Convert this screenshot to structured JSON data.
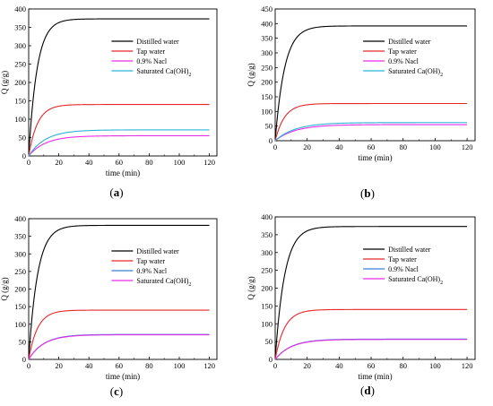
{
  "chart_data": [
    {
      "type": "line",
      "panel_label": "a",
      "xlabel": "time (min)",
      "ylabel": "Q (g/g)",
      "xlim": [
        0,
        125
      ],
      "ylim": [
        0,
        400
      ],
      "xticks": [
        0,
        20,
        40,
        60,
        80,
        100,
        120
      ],
      "yticks": [
        0,
        50,
        100,
        150,
        200,
        250,
        300,
        350,
        400
      ],
      "legend": "top-right",
      "series": [
        {
          "name": "Distilled water",
          "color": "#000000",
          "q_max": 373,
          "k": 0.18
        },
        {
          "name": "Tap water",
          "color": "#e8262a",
          "q_max": 140,
          "k": 0.17
        },
        {
          "name": "0.9% Nacl",
          "color": "#e62ee6",
          "q_max": 55,
          "k": 0.09
        },
        {
          "name": "Saturated Ca(OH)2",
          "color": "#2ab3d6",
          "q_max": 71,
          "k": 0.09
        }
      ]
    },
    {
      "type": "line",
      "panel_label": "b",
      "xlabel": "time (min)",
      "ylabel": "Q (g/g)",
      "xlim": [
        0,
        125
      ],
      "ylim": [
        0,
        450
      ],
      "xticks": [
        0,
        20,
        40,
        60,
        80,
        100,
        120
      ],
      "yticks": [
        0,
        50,
        100,
        150,
        200,
        250,
        300,
        350,
        400,
        450
      ],
      "legend": "top-right",
      "series": [
        {
          "name": "Distilled water",
          "color": "#000000",
          "q_max": 392,
          "k": 0.17
        },
        {
          "name": "Tap water",
          "color": "#e8262a",
          "q_max": 127,
          "k": 0.17
        },
        {
          "name": "0.9% Nacl",
          "color": "#e62ee6",
          "q_max": 55,
          "k": 0.08
        },
        {
          "name": "Saturated Ca(OH)2",
          "color": "#2ab3d6",
          "q_max": 62,
          "k": 0.08
        }
      ]
    },
    {
      "type": "line",
      "panel_label": "c",
      "xlabel": "time (min)",
      "ylabel": "Q (g/g)",
      "xlim": [
        0,
        125
      ],
      "ylim": [
        0,
        400
      ],
      "xticks": [
        0,
        20,
        40,
        60,
        80,
        100,
        120
      ],
      "yticks": [
        0,
        50,
        100,
        150,
        200,
        250,
        300,
        350,
        400
      ],
      "legend": "top-right",
      "series": [
        {
          "name": "Distilled water",
          "color": "#000000",
          "q_max": 381,
          "k": 0.17
        },
        {
          "name": "Tap water",
          "color": "#e8262a",
          "q_max": 140,
          "k": 0.17
        },
        {
          "name": "0.9% Nacl",
          "color": "#3a7fd8",
          "q_max": 71,
          "k": 0.1
        },
        {
          "name": "Saturated Ca(OH)2",
          "color": "#e62ee6",
          "q_max": 70,
          "k": 0.1
        }
      ]
    },
    {
      "type": "line",
      "panel_label": "d",
      "xlabel": "time (min)",
      "ylabel": "Q (g/g)",
      "xlim": [
        0,
        125
      ],
      "ylim": [
        0,
        400
      ],
      "xticks": [
        0,
        20,
        40,
        60,
        80,
        100,
        120
      ],
      "yticks": [
        0,
        50,
        100,
        150,
        200,
        250,
        300,
        350,
        400
      ],
      "legend": "top-right",
      "series": [
        {
          "name": "Distilled water",
          "color": "#000000",
          "q_max": 373,
          "k": 0.17
        },
        {
          "name": "Tap water",
          "color": "#e8262a",
          "q_max": 140,
          "k": 0.17
        },
        {
          "name": "0.9% Nacl",
          "color": "#3a7fd8",
          "q_max": 57,
          "k": 0.1
        },
        {
          "name": "Saturated Ca(OH)2",
          "color": "#e62ee6",
          "q_max": 56,
          "k": 0.1
        }
      ]
    }
  ]
}
